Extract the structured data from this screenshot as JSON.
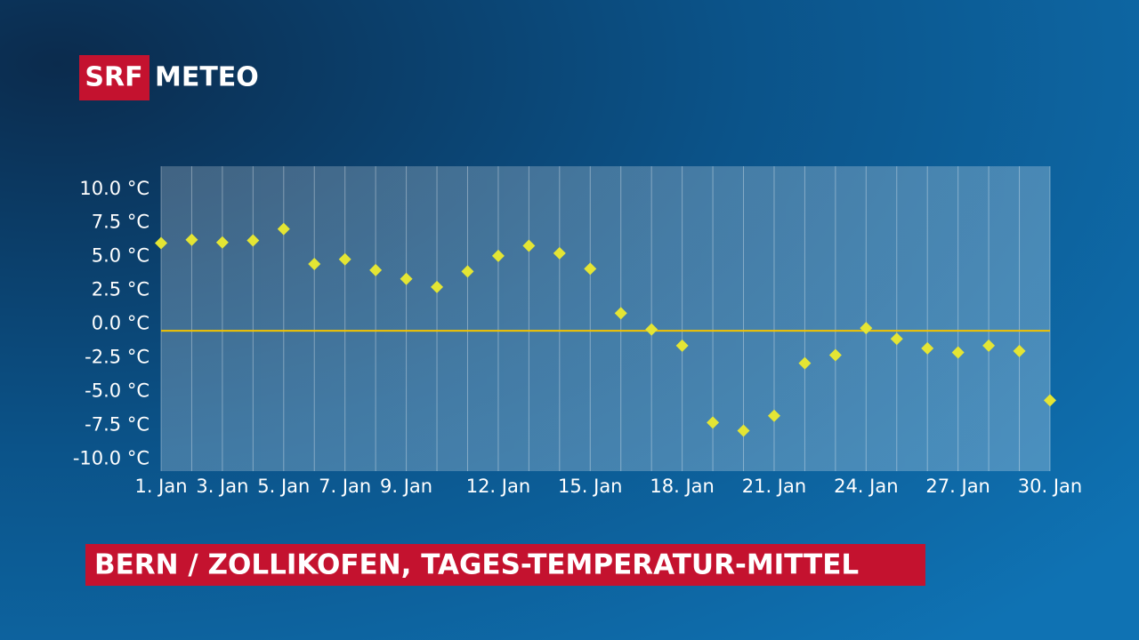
{
  "logo": {
    "brand": "SRF",
    "product": "METEO"
  },
  "chart_data": {
    "type": "scatter",
    "title": "BERN / ZOLLIKOFEN, TAGES-TEMPERATUR-MITTEL",
    "x": [
      1,
      2,
      3,
      4,
      5,
      6,
      7,
      8,
      9,
      10,
      11,
      12,
      13,
      14,
      15,
      16,
      17,
      18,
      19,
      20,
      21,
      22,
      23,
      24,
      25,
      26,
      27,
      28,
      29,
      30
    ],
    "series": [
      {
        "color": "#e4e534",
        "values": [
          6.0,
          6.25,
          6.05,
          6.2,
          7.05,
          4.45,
          4.8,
          4.0,
          3.35,
          2.75,
          3.9,
          5.05,
          5.8,
          5.25,
          4.1,
          0.8,
          -0.4,
          -1.6,
          -7.3,
          -7.9,
          -6.8,
          -2.9,
          -2.3,
          -0.3,
          -1.1,
          -1.8,
          -2.1,
          -1.6,
          -2.0,
          -5.65
        ]
      }
    ],
    "xlim": [
      1,
      30
    ],
    "xticks": [
      {
        "value": 1,
        "label": "1. Jan"
      },
      {
        "value": 3,
        "label": "3. Jan"
      },
      {
        "value": 5,
        "label": "5. Jan"
      },
      {
        "value": 7,
        "label": "7. Jan"
      },
      {
        "value": 9,
        "label": "9. Jan"
      },
      {
        "value": 12,
        "label": "12. Jan"
      },
      {
        "value": 15,
        "label": "15. Jan"
      },
      {
        "value": 18,
        "label": "18. Jan"
      },
      {
        "value": 21,
        "label": "21. Jan"
      },
      {
        "value": 24,
        "label": "24. Jan"
      },
      {
        "value": 27,
        "label": "27. Jan"
      },
      {
        "value": 30,
        "label": "30. Jan"
      }
    ],
    "ylim": [
      -10.9,
      11.7
    ],
    "yticks": [
      {
        "value": 10,
        "label": "10.0 °C"
      },
      {
        "value": 7.5,
        "label": "7.5 °C"
      },
      {
        "value": 5,
        "label": "5.0 °C"
      },
      {
        "value": 2.5,
        "label": "2.5 °C"
      },
      {
        "value": 0,
        "label": "0.0 °C"
      },
      {
        "value": -2.5,
        "label": "-2.5 °C"
      },
      {
        "value": -5,
        "label": "-5.0 °C"
      },
      {
        "value": -7.5,
        "label": "-7.5 °C"
      },
      {
        "value": -10,
        "label": "-10.0 °C"
      }
    ],
    "reference_line": {
      "value": -0.5,
      "color": "#f2c300"
    },
    "grid": true
  }
}
